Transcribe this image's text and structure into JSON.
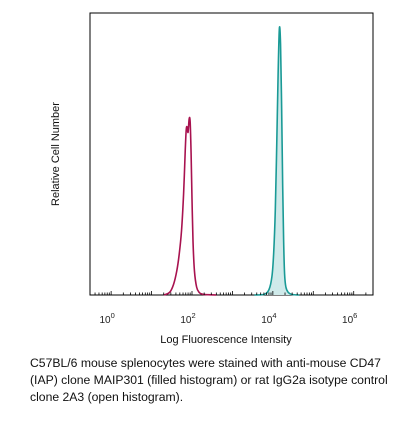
{
  "chart_data": {
    "type": "area",
    "xlabel": "Log Fluorescence Intensity",
    "ylabel": "Relative Cell Number",
    "x_scale": "log",
    "xlim": [
      0.3,
      3000000
    ],
    "ylim": [
      0,
      1.05
    ],
    "x_ticks": [
      {
        "base": "10",
        "exp": "0",
        "value": 1
      },
      {
        "base": "10",
        "exp": "2",
        "value": 100
      },
      {
        "base": "10",
        "exp": "4",
        "value": 10000
      },
      {
        "base": "10",
        "exp": "6",
        "value": 1000000
      }
    ],
    "grid": false,
    "series": [
      {
        "style": "filled",
        "color": "#1a9a96",
        "fill": "#cfeaea",
        "x": [
          3500,
          6000,
          8000,
          9500,
          10500,
          11500,
          12500,
          13500,
          14500,
          15500,
          16500,
          17500,
          18500,
          19500,
          21000,
          24000,
          30000,
          45000
        ],
        "y": [
          0,
          0.002,
          0.02,
          0.07,
          0.16,
          0.32,
          0.57,
          0.83,
          1.0,
          0.94,
          0.7,
          0.41,
          0.2,
          0.08,
          0.03,
          0.01,
          0.002,
          0
        ]
      },
      {
        "style": "open",
        "color": "#a8124f",
        "x": [
          20,
          28,
          35,
          42,
          48,
          55,
          62,
          68,
          72,
          76,
          80,
          85,
          90,
          95,
          100,
          106,
          115,
          130,
          150,
          180,
          250,
          400
        ],
        "y": [
          0,
          0.01,
          0.04,
          0.09,
          0.15,
          0.24,
          0.38,
          0.54,
          0.62,
          0.63,
          0.61,
          0.66,
          0.65,
          0.53,
          0.36,
          0.2,
          0.09,
          0.03,
          0.01,
          0.003,
          0.001,
          0
        ]
      }
    ]
  },
  "caption": "C57BL/6 mouse splenocytes were stained with anti-mouse CD47 (IAP) clone MAIP301 (filled histogram) or rat IgG2a isotype control clone 2A3 (open histogram)."
}
